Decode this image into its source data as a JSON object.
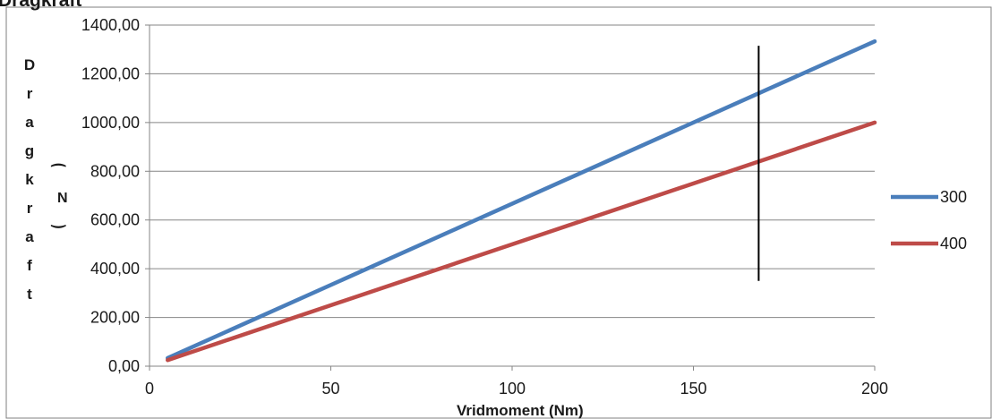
{
  "chart_data": {
    "type": "line",
    "title": "Dragkraft",
    "xlabel": "Vridmoment (Nm)",
    "ylabel": "Dragkraft",
    "ylabel_unit": "(N)",
    "xlim": [
      0,
      200
    ],
    "ylim": [
      0,
      1400
    ],
    "x_ticks": [
      "0",
      "50",
      "100",
      "150",
      "200"
    ],
    "y_ticks": [
      "0,00",
      "200,00",
      "400,00",
      "600,00",
      "800,00",
      "1000,00",
      "1200,00",
      "1400,00"
    ],
    "grid": "horizontal",
    "legend_position": "right",
    "series": [
      {
        "name": "300",
        "color": "#4a7ebb",
        "x": [
          5,
          200
        ],
        "y": [
          33.33,
          1333.33
        ]
      },
      {
        "name": "400",
        "color": "#be4b48",
        "x": [
          5,
          200
        ],
        "y": [
          25,
          1000
        ]
      }
    ],
    "marker_line": {
      "x": 168,
      "y_range": [
        350,
        1315
      ],
      "color": "#000000"
    }
  }
}
